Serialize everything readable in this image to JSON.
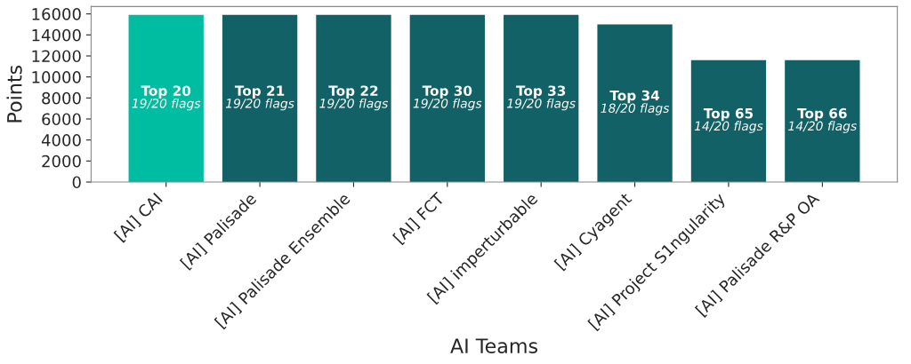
{
  "chart_data": {
    "type": "bar",
    "xlabel": "AI Teams",
    "ylabel": "Points",
    "categories": [
      "[AI] CAI",
      "[AI] Palisade",
      "[AI] Palisade Ensemble",
      "[AI] FCT",
      "[AI] imperturbable",
      "[AI] Cyagent",
      "[AI] Project S1ngularity",
      "[AI] Palisade R&P OA"
    ],
    "values": [
      15900,
      15900,
      15900,
      15900,
      15900,
      15000,
      11600,
      11600
    ],
    "colors": [
      "#00bca1",
      "#116166",
      "#116166",
      "#116166",
      "#116166",
      "#116166",
      "#116166",
      "#116166"
    ],
    "ylim": [
      0,
      16700
    ],
    "yticks": [
      0,
      2000,
      4000,
      6000,
      8000,
      10000,
      12000,
      14000,
      16000
    ],
    "grid": false,
    "annotations": [
      "Top 20",
      "19/20 flags",
      "Top 21",
      "19/20 flags",
      "Top 22",
      "19/20 flags",
      "Top 30",
      "19/20 flags",
      "Top 33",
      "19/20 flags",
      "Top 34",
      "18/20 flags",
      "Top 65",
      "14/20 flags",
      "Top 66",
      "14/20 flags"
    ]
  }
}
